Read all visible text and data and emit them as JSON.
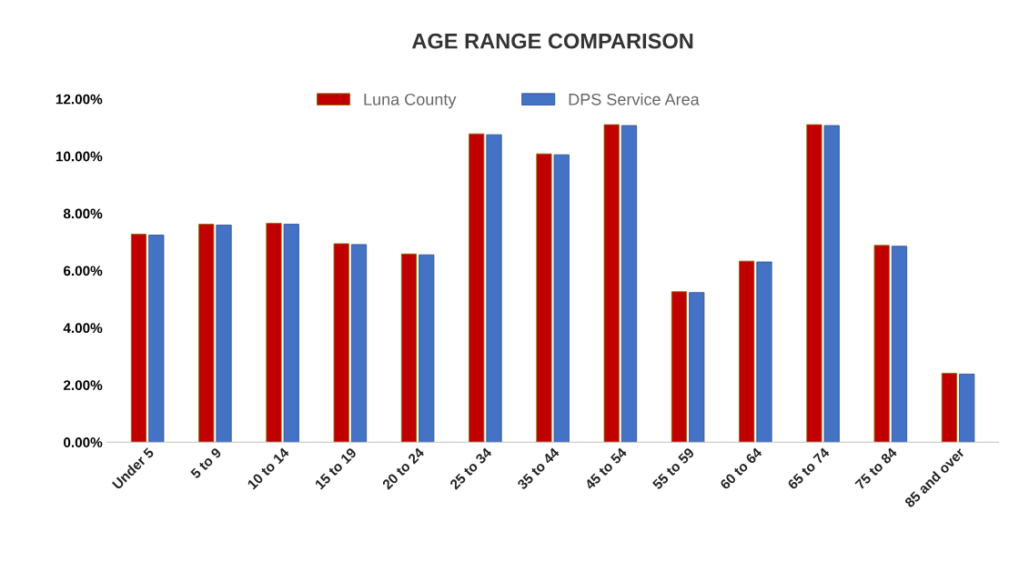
{
  "chart_data": {
    "type": "bar",
    "title": "AGE RANGE COMPARISON",
    "categories": [
      "Under 5",
      "5 to 9",
      "10 to 14",
      "15 to 19",
      "20 to 24",
      "25 to 34",
      "35 to 44",
      "45 to 54",
      "55 to 59",
      "60 to 64",
      "65 to 74",
      "75 to 84",
      "85 and over"
    ],
    "series": [
      {
        "name": "Luna County",
        "color": "#c00000",
        "values": [
          7.27,
          7.62,
          7.65,
          6.94,
          6.58,
          10.78,
          10.08,
          11.1,
          5.26,
          6.33,
          11.1,
          6.88,
          2.41
        ]
      },
      {
        "name": "DPS Service Area",
        "color": "#4472c4",
        "values": [
          7.24,
          7.59,
          7.62,
          6.91,
          6.55,
          10.75,
          10.05,
          11.07,
          5.23,
          6.3,
          11.07,
          6.85,
          2.38
        ]
      }
    ],
    "ylim": [
      0,
      12
    ],
    "yticks": [
      {
        "value": 0,
        "label": "0.00%"
      },
      {
        "value": 2,
        "label": "2.00%"
      },
      {
        "value": 4,
        "label": "4.00%"
      },
      {
        "value": 6,
        "label": "6.00%"
      },
      {
        "value": 8,
        "label": "8.00%"
      },
      {
        "value": 10,
        "label": "10.00%"
      },
      {
        "value": 12,
        "label": "12.00%"
      }
    ],
    "grid": false,
    "legend": "top"
  }
}
